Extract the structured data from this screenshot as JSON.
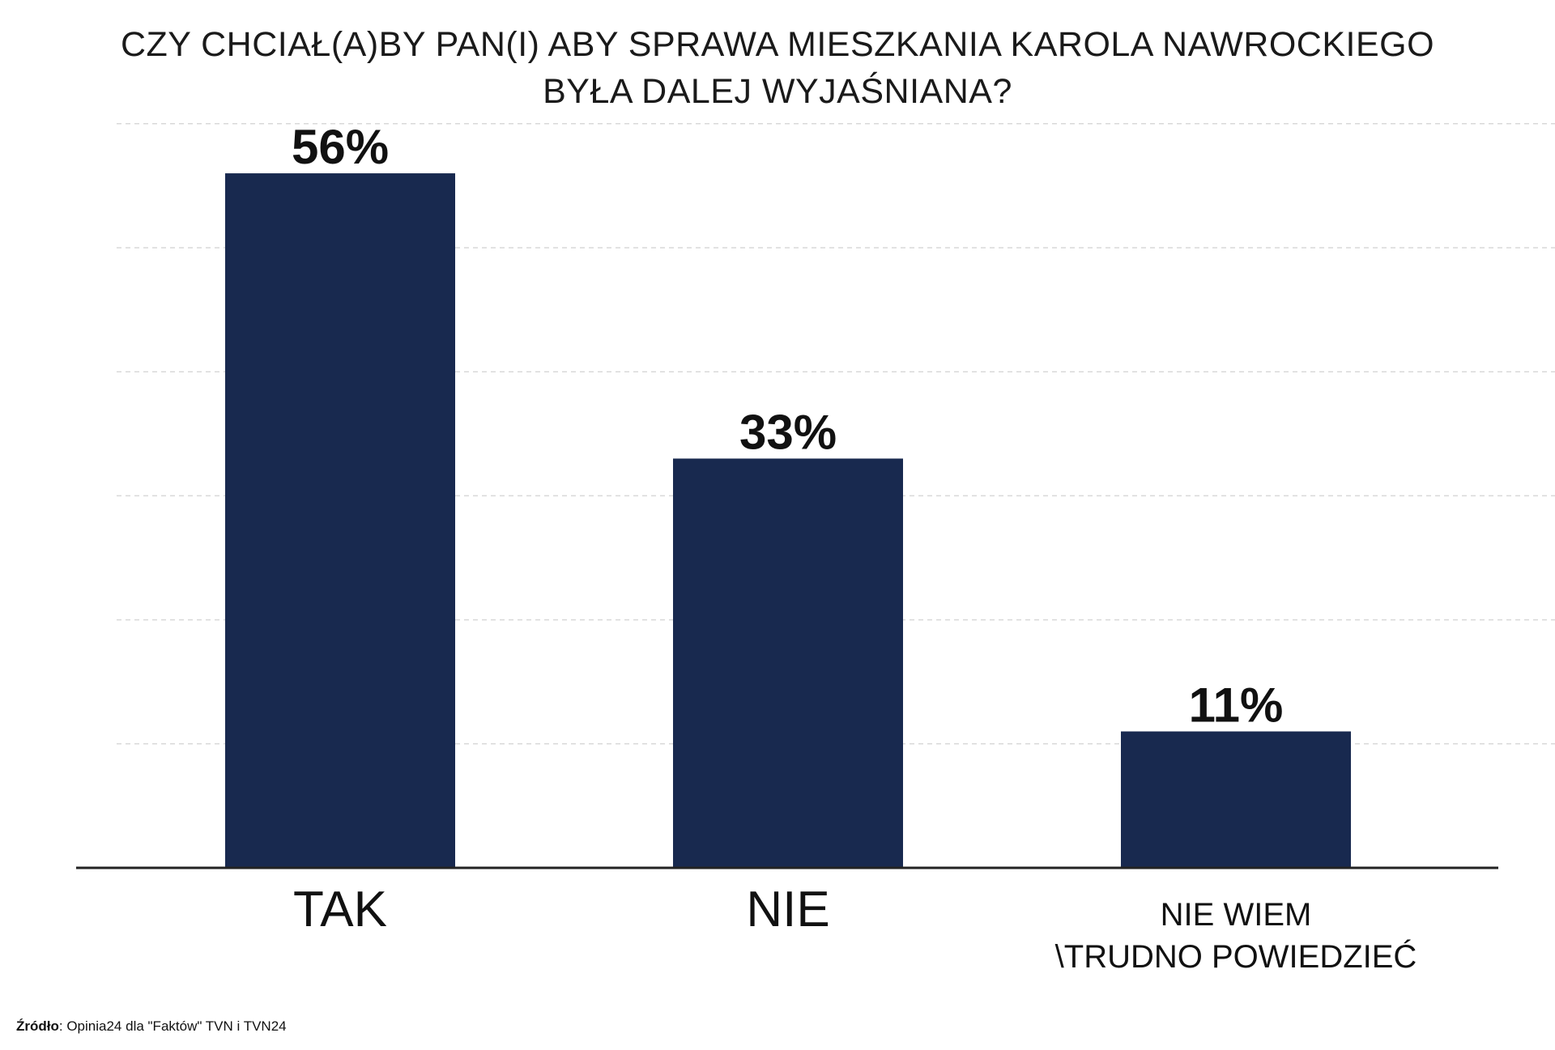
{
  "title_lines": [
    "CZY CHCIAŁ(A)BY PAN(I) ABY SPRAWA MIESZKANIA KAROLA NAWROCKIEGO",
    "BYŁA DALEJ WYJAŚNIANA?"
  ],
  "source": {
    "label": "Źródło",
    "text": ": Opinia24 dla \"Faktów\" TVN i TVN24"
  },
  "colors": {
    "bar": "#18294f",
    "gridline": "#d9d9d9",
    "axis": "#222222",
    "text": "#111111"
  },
  "chart_data": {
    "type": "bar",
    "title": "CZY CHCIAŁ(A)BY PAN(I) ABY SPRAWA MIESZKANIA KAROLA NAWROCKIEGO BYŁA DALEJ WYJAŚNIANA?",
    "categories": [
      [
        "TAK"
      ],
      [
        "NIE"
      ],
      [
        "NIE WIEM",
        "\\TRUDNO POWIEDZIEĆ"
      ]
    ],
    "values": [
      56,
      33,
      11
    ],
    "value_labels": [
      "56%",
      "33%",
      "11%"
    ],
    "unit": "%",
    "ylim": [
      0,
      60
    ],
    "grid": true,
    "legend": "none"
  }
}
